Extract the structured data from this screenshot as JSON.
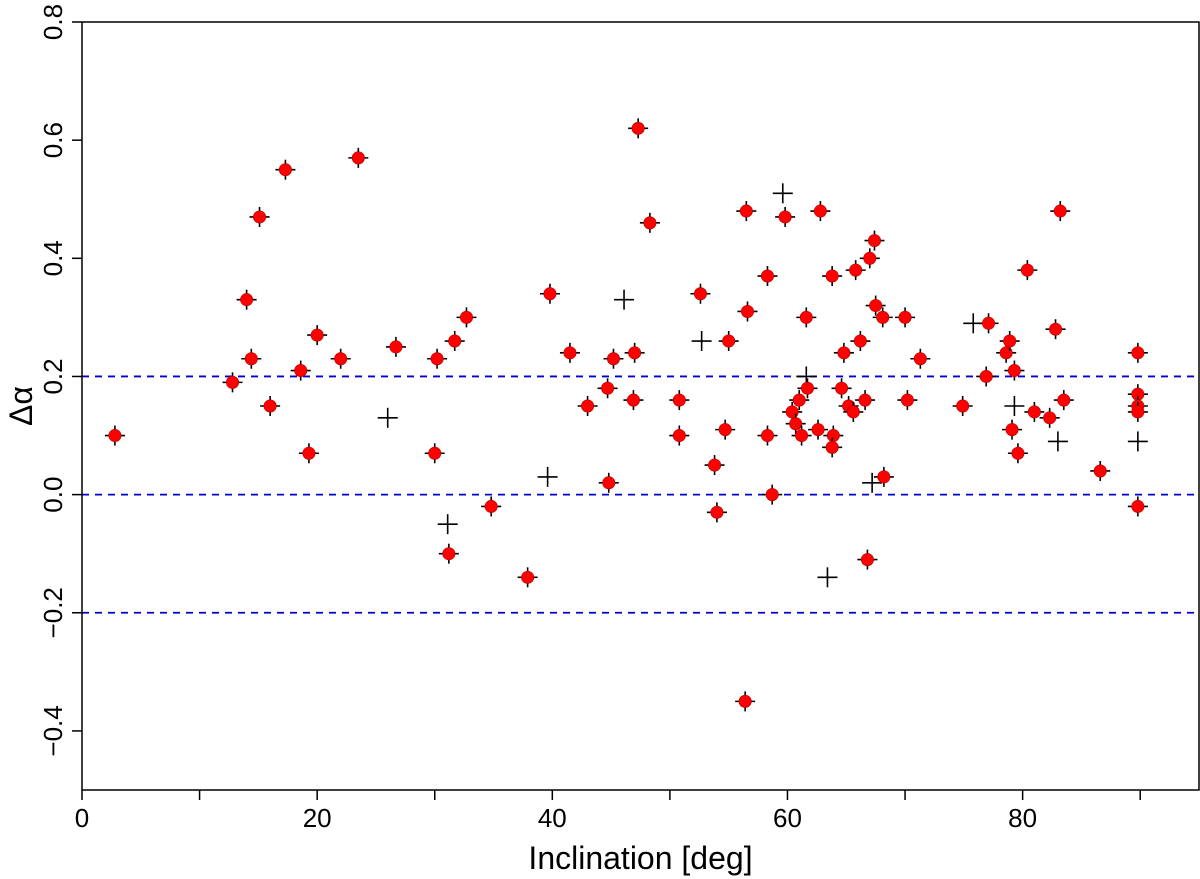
{
  "chart_data": {
    "type": "scatter",
    "title": "",
    "xlabel": "Inclination [deg]",
    "ylabel": "Δα",
    "xlim": [
      0,
      95
    ],
    "ylim": [
      -0.5,
      0.8
    ],
    "xticks": [
      0,
      20,
      40,
      60,
      80
    ],
    "xtick_labels": [
      "0",
      "20",
      "40",
      "60",
      "80"
    ],
    "yticks": [
      -0.4,
      -0.2,
      0.0,
      0.2,
      0.4,
      0.6,
      0.8
    ],
    "ytick_labels": [
      "−0.4",
      "−0.2",
      "0.0",
      "0.2",
      "0.4",
      "0.6",
      "0.8"
    ],
    "minor_xticks": [
      10,
      30,
      50,
      70,
      90
    ],
    "reference_lines": {
      "y": [
        0.2,
        0.0,
        -0.2
      ],
      "color": "#0000cc",
      "style": "dashed"
    },
    "grid": false,
    "legend": "none",
    "series": [
      {
        "name": "points with red marker",
        "marker": "plus with filled circle",
        "color": "#ff0000",
        "points": [
          {
            "x": 2.8,
            "y": 0.1
          },
          {
            "x": 12.8,
            "y": 0.19
          },
          {
            "x": 14.0,
            "y": 0.33
          },
          {
            "x": 14.4,
            "y": 0.23
          },
          {
            "x": 15.1,
            "y": 0.47
          },
          {
            "x": 16.0,
            "y": 0.15
          },
          {
            "x": 17.3,
            "y": 0.55
          },
          {
            "x": 18.6,
            "y": 0.21
          },
          {
            "x": 19.3,
            "y": 0.07
          },
          {
            "x": 20.0,
            "y": 0.27
          },
          {
            "x": 22.0,
            "y": 0.23
          },
          {
            "x": 23.5,
            "y": 0.57
          },
          {
            "x": 26.7,
            "y": 0.25
          },
          {
            "x": 30.0,
            "y": 0.07
          },
          {
            "x": 30.2,
            "y": 0.23
          },
          {
            "x": 31.2,
            "y": -0.1
          },
          {
            "x": 31.7,
            "y": 0.26
          },
          {
            "x": 32.7,
            "y": 0.3
          },
          {
            "x": 34.8,
            "y": -0.02
          },
          {
            "x": 37.9,
            "y": -0.14
          },
          {
            "x": 39.8,
            "y": 0.34
          },
          {
            "x": 41.5,
            "y": 0.24
          },
          {
            "x": 43.0,
            "y": 0.15
          },
          {
            "x": 44.7,
            "y": 0.18
          },
          {
            "x": 44.8,
            "y": 0.02
          },
          {
            "x": 45.2,
            "y": 0.23
          },
          {
            "x": 47.0,
            "y": 0.24
          },
          {
            "x": 46.9,
            "y": 0.16
          },
          {
            "x": 47.3,
            "y": 0.62
          },
          {
            "x": 48.3,
            "y": 0.46
          },
          {
            "x": 50.8,
            "y": 0.16
          },
          {
            "x": 50.8,
            "y": 0.1
          },
          {
            "x": 52.6,
            "y": 0.34
          },
          {
            "x": 53.8,
            "y": 0.05
          },
          {
            "x": 54.0,
            "y": -0.03
          },
          {
            "x": 54.7,
            "y": 0.11
          },
          {
            "x": 55.0,
            "y": 0.26
          },
          {
            "x": 56.5,
            "y": 0.48
          },
          {
            "x": 56.6,
            "y": 0.31
          },
          {
            "x": 56.4,
            "y": -0.35
          },
          {
            "x": 58.3,
            "y": 0.37
          },
          {
            "x": 58.3,
            "y": 0.1
          },
          {
            "x": 58.7,
            "y": 0.0
          },
          {
            "x": 59.8,
            "y": 0.47
          },
          {
            "x": 60.4,
            "y": 0.14
          },
          {
            "x": 60.7,
            "y": 0.12
          },
          {
            "x": 61.0,
            "y": 0.16
          },
          {
            "x": 61.2,
            "y": 0.1
          },
          {
            "x": 61.6,
            "y": 0.3
          },
          {
            "x": 61.7,
            "y": 0.18
          },
          {
            "x": 62.6,
            "y": 0.11
          },
          {
            "x": 62.8,
            "y": 0.48
          },
          {
            "x": 63.8,
            "y": 0.37
          },
          {
            "x": 63.9,
            "y": 0.1
          },
          {
            "x": 63.8,
            "y": 0.08
          },
          {
            "x": 64.6,
            "y": 0.18
          },
          {
            "x": 64.8,
            "y": 0.24
          },
          {
            "x": 65.2,
            "y": 0.15
          },
          {
            "x": 65.6,
            "y": 0.14
          },
          {
            "x": 65.8,
            "y": 0.38
          },
          {
            "x": 66.2,
            "y": 0.26
          },
          {
            "x": 66.6,
            "y": 0.16
          },
          {
            "x": 66.8,
            "y": -0.11
          },
          {
            "x": 67.0,
            "y": 0.4
          },
          {
            "x": 67.4,
            "y": 0.43
          },
          {
            "x": 67.5,
            "y": 0.32
          },
          {
            "x": 68.1,
            "y": 0.3
          },
          {
            "x": 68.2,
            "y": 0.03
          },
          {
            "x": 70.0,
            "y": 0.3
          },
          {
            "x": 70.2,
            "y": 0.16
          },
          {
            "x": 71.3,
            "y": 0.23
          },
          {
            "x": 74.9,
            "y": 0.15
          },
          {
            "x": 76.9,
            "y": 0.2
          },
          {
            "x": 77.1,
            "y": 0.29
          },
          {
            "x": 78.6,
            "y": 0.24
          },
          {
            "x": 78.9,
            "y": 0.26
          },
          {
            "x": 79.1,
            "y": 0.11
          },
          {
            "x": 79.3,
            "y": 0.21
          },
          {
            "x": 79.6,
            "y": 0.07
          },
          {
            "x": 80.4,
            "y": 0.38
          },
          {
            "x": 81.0,
            "y": 0.14
          },
          {
            "x": 82.3,
            "y": 0.13
          },
          {
            "x": 82.8,
            "y": 0.28
          },
          {
            "x": 83.2,
            "y": 0.48
          },
          {
            "x": 83.5,
            "y": 0.16
          },
          {
            "x": 86.6,
            "y": 0.04
          },
          {
            "x": 89.8,
            "y": 0.24
          },
          {
            "x": 89.8,
            "y": 0.17
          },
          {
            "x": 89.8,
            "y": 0.15
          },
          {
            "x": 89.8,
            "y": 0.14
          },
          {
            "x": 89.8,
            "y": -0.02
          }
        ]
      },
      {
        "name": "points without red marker",
        "marker": "plus",
        "color": "#000000",
        "points": [
          {
            "x": 26.0,
            "y": 0.13
          },
          {
            "x": 31.1,
            "y": -0.05
          },
          {
            "x": 39.6,
            "y": 0.03
          },
          {
            "x": 46.1,
            "y": 0.33
          },
          {
            "x": 52.7,
            "y": 0.26
          },
          {
            "x": 59.6,
            "y": 0.51
          },
          {
            "x": 61.6,
            "y": 0.2
          },
          {
            "x": 63.4,
            "y": -0.14
          },
          {
            "x": 67.2,
            "y": 0.02
          },
          {
            "x": 75.8,
            "y": 0.29
          },
          {
            "x": 79.3,
            "y": 0.15
          },
          {
            "x": 83.0,
            "y": 0.09
          },
          {
            "x": 89.8,
            "y": 0.09
          }
        ]
      }
    ]
  }
}
